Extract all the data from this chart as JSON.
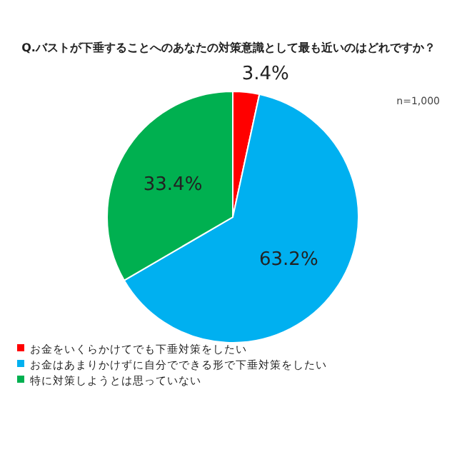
{
  "chart_data": {
    "type": "pie",
    "title": "Q.バストが下垂することへのあなたの対策意識として最も近いのはどれですか？",
    "annotations": [
      "n=1,000"
    ],
    "categories": [
      "お金をいくらかけてでも下垂対策をしたい",
      "お金はあまりかけずに自分でできる形で下垂対策をしたい",
      "特に対策しようとは思っていない"
    ],
    "values": [
      3.4,
      63.2,
      33.4
    ],
    "colors": [
      "#ff0000",
      "#00b0f0",
      "#00b050"
    ],
    "value_labels": [
      "3.4%",
      "63.2%",
      "33.4%"
    ],
    "legend": "bottom"
  }
}
